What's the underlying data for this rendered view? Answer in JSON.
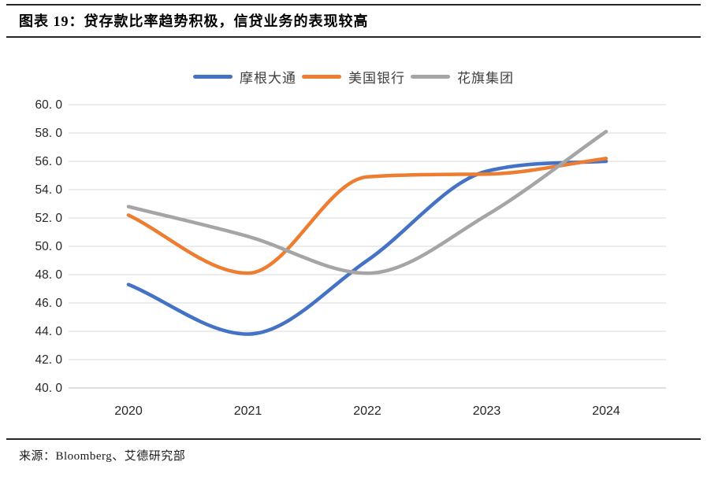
{
  "header": {
    "title": "图表 19：贷存款比率趋势积极，信贷业务的表现较高"
  },
  "footer": {
    "source": "来源：Bloomberg、艾德研究部"
  },
  "chart_data": {
    "type": "line",
    "smoothed": true,
    "title": "贷存款比率趋势积极，信贷业务的表现较高",
    "categories": [
      "2020",
      "2021",
      "2022",
      "2023",
      "2024"
    ],
    "series": [
      {
        "name": "摩根大通",
        "color": "#4472C4",
        "values": [
          47.3,
          43.8,
          49.0,
          55.3,
          56.0
        ]
      },
      {
        "name": "美国银行",
        "color": "#ED7D31",
        "values": [
          52.2,
          48.1,
          54.9,
          55.1,
          56.2
        ]
      },
      {
        "name": "花旗集团",
        "color": "#A5A5A5",
        "values": [
          52.8,
          50.7,
          48.1,
          52.2,
          58.1
        ]
      }
    ],
    "xlabel": "",
    "ylabel": "",
    "ylim": [
      40.0,
      60.0
    ],
    "ystep": 2.0,
    "ytick_labels": [
      "40. 0",
      "42. 0",
      "44. 0",
      "46. 0",
      "48. 0",
      "50. 0",
      "52. 0",
      "54. 0",
      "56. 0",
      "58. 0",
      "60. 0"
    ],
    "grid": true,
    "legend_position": "top"
  },
  "colors": {
    "gridline": "#D9D9D9",
    "axis_line": "#BFBFBF",
    "tick_text": "#262626",
    "rule": "#262626"
  }
}
